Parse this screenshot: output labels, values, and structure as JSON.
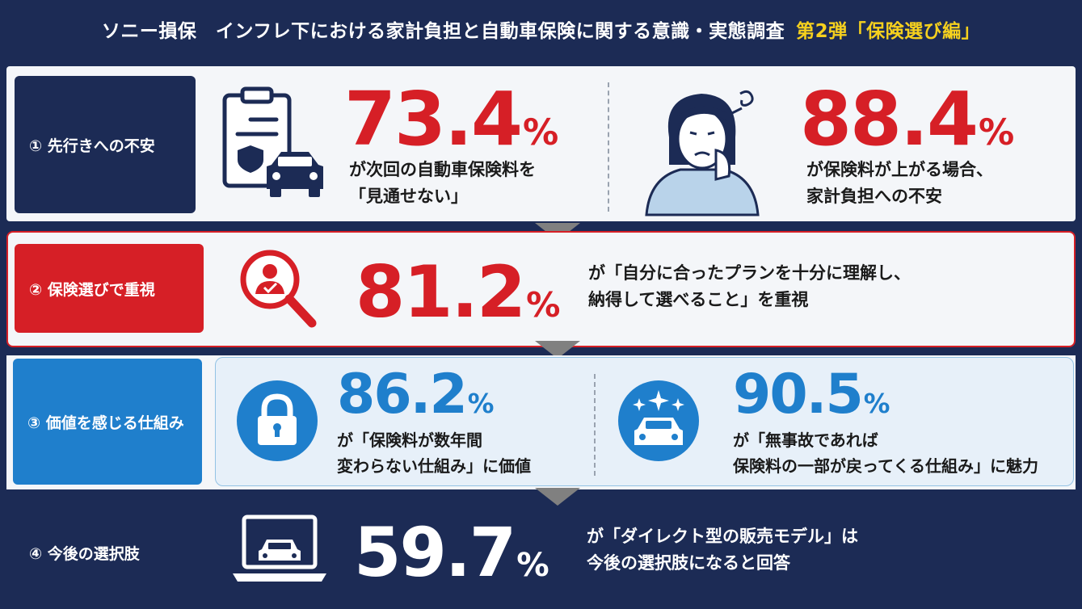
{
  "header": {
    "title": "ソニー損保　インフレ下における家計負担と自動車保険に関する意識・実態調査",
    "highlight": "第2弾「保険選び編」"
  },
  "sections": [
    {
      "label": "① 先行きへの不安",
      "stats": [
        {
          "value": "73.4",
          "unit": "%",
          "lines": [
            "が次回の自動車保険料を",
            "「見通せない」"
          ],
          "icon": "clipboard-car-icon"
        },
        {
          "value": "88.4",
          "unit": "%",
          "lines": [
            "が保険料が上がる場合、",
            "家計負担への不安"
          ],
          "icon": "worried-woman-icon"
        }
      ]
    },
    {
      "label": "② 保険選びで重視",
      "stats": [
        {
          "value": "81.2",
          "unit": "%",
          "lines": [
            "が「自分に合ったプランを十分に理解し、",
            "納得して選べること」を重視"
          ],
          "icon": "magnifier-person-icon"
        }
      ]
    },
    {
      "label": "③ 価値を感じる仕組み",
      "stats": [
        {
          "value": "86.2",
          "unit": "%",
          "lines": [
            "が「保険料が数年間",
            "変わらない仕組み」に価値"
          ],
          "icon": "lock-icon"
        },
        {
          "value": "90.5",
          "unit": "%",
          "lines": [
            "が「無事故であれば",
            "保険料の一部が戻ってくる仕組み」に魅力"
          ],
          "icon": "sparkle-car-icon"
        }
      ]
    },
    {
      "label": "④ 今後の選択肢",
      "stats": [
        {
          "value": "59.7",
          "unit": "%",
          "lines": [
            "が「ダイレクト型の販売モデル」は",
            "今後の選択肢になると回答"
          ],
          "icon": "laptop-car-icon"
        }
      ]
    }
  ],
  "colors": {
    "navy": "#1c2b55",
    "red": "#d61f26",
    "blue": "#1f7fcc",
    "yellow": "#f5d01e"
  }
}
